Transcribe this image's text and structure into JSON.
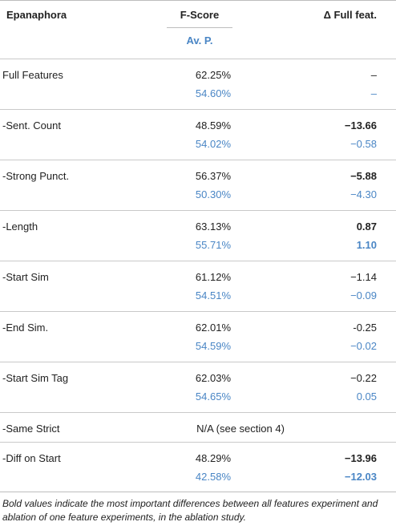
{
  "header": {
    "col1": "Epanaphora",
    "col2": "F-Score",
    "col2_sub": "Av. P.",
    "col3": "Δ Full feat."
  },
  "rows": [
    {
      "feature": "Full Features",
      "v1": "62.25%",
      "v2": "54.60%",
      "d1": "–",
      "d2": "–"
    },
    {
      "feature": "-Sent. Count",
      "v1": "48.59%",
      "v2": "54.02%",
      "d1": "−13.66",
      "d2": "−0.58"
    },
    {
      "feature": "-Strong Punct.",
      "v1": "56.37%",
      "v2": "50.30%",
      "d1": "−5.88",
      "d2": "−4.30"
    },
    {
      "feature": "-Length",
      "v1": "63.13%",
      "v2": "55.71%",
      "d1": "0.87",
      "d2": "1.10"
    },
    {
      "feature": "-Start Sim",
      "v1": "61.12%",
      "v2": "54.51%",
      "d1": "−1.14",
      "d2": "−0.09"
    },
    {
      "feature": "-End Sim.",
      "v1": "62.01%",
      "v2": "54.59%",
      "d1": "-0.25",
      "d2": "−0.02"
    },
    {
      "feature": "-Start Sim Tag",
      "v1": "62.03%",
      "v2": "54.65%",
      "d1": "−0.22",
      "d2": "0.05"
    },
    {
      "feature": "-Same Strict",
      "na": "N/A (see section 4)"
    },
    {
      "feature": "-Diff on Start",
      "v1": "48.29%",
      "v2": "42.58%",
      "d1": "−13.96",
      "d2": "−12.03"
    }
  ],
  "footnote": "Bold values indicate the most important differences between all features experiment and ablation of one feature experiments, in the ablation study."
}
